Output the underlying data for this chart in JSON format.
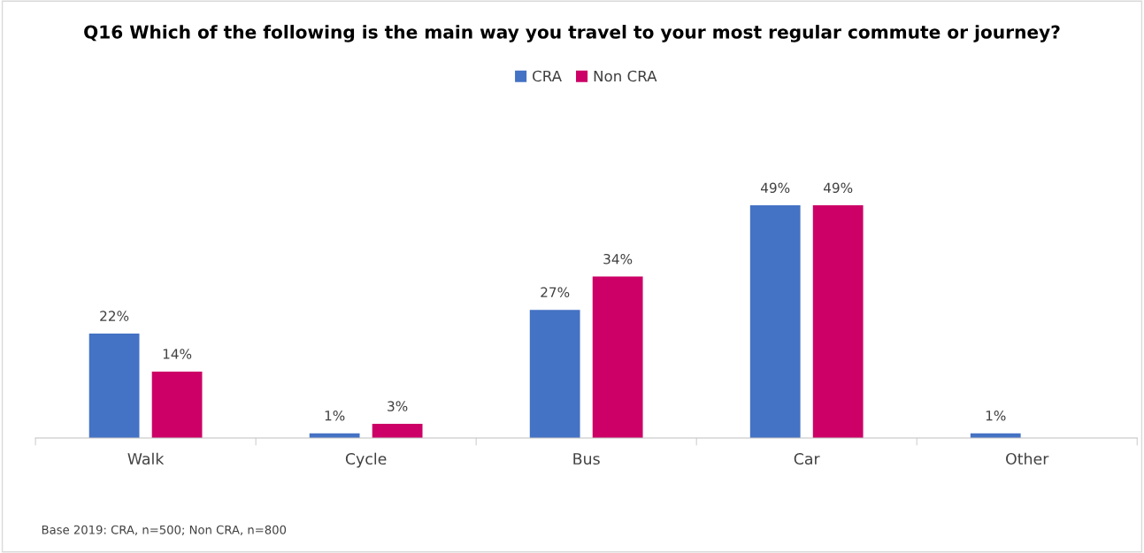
{
  "chart_data": {
    "type": "bar",
    "title": "Q16 Which of the following is the main way you travel to your most regular commute or journey?",
    "categories": [
      "Walk",
      "Cycle",
      "Bus",
      "Car",
      "Other"
    ],
    "series": [
      {
        "name": "CRA",
        "color": "#4472c4",
        "values": [
          22,
          1,
          27,
          49,
          1
        ],
        "value_labels": [
          "22%",
          "1%",
          "27%",
          "49%",
          "1%"
        ]
      },
      {
        "name": "Non CRA",
        "color": "#cc0066",
        "values": [
          14,
          3,
          34,
          49,
          null
        ],
        "value_labels": [
          "14%",
          "3%",
          "34%",
          "49%",
          null
        ]
      }
    ],
    "tick_labels": "x",
    "grid": false,
    "legend": "top",
    "annotations": [
      "Base 2019: CRA, n=500; Non CRA, n=800"
    ]
  }
}
